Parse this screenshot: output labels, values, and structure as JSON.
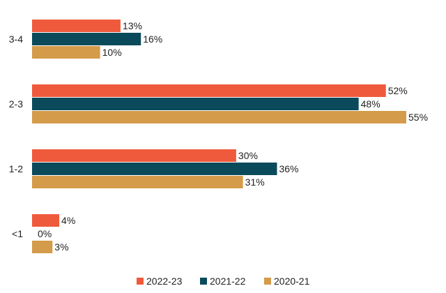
{
  "chart_data": {
    "type": "bar",
    "orientation": "horizontal",
    "categories": [
      "3-4",
      "2-3",
      "1-2",
      "<1"
    ],
    "series": [
      {
        "name": "2022-23",
        "color": "#F05A3C",
        "values": [
          13,
          52,
          30,
          4
        ],
        "labels": [
          "13%",
          "52%",
          "30%",
          "4%"
        ]
      },
      {
        "name": "2021-22",
        "color": "#0B4A5A",
        "values": [
          16,
          48,
          36,
          0
        ],
        "labels": [
          "16%",
          "48%",
          "36%",
          "0%"
        ]
      },
      {
        "name": "2020-21",
        "color": "#D49B4A",
        "values": [
          10,
          55,
          31,
          3
        ],
        "labels": [
          "10%",
          "55%",
          "31%",
          "3%"
        ]
      }
    ],
    "xlim": [
      0,
      55
    ],
    "grid": false,
    "legend_position": "bottom"
  }
}
